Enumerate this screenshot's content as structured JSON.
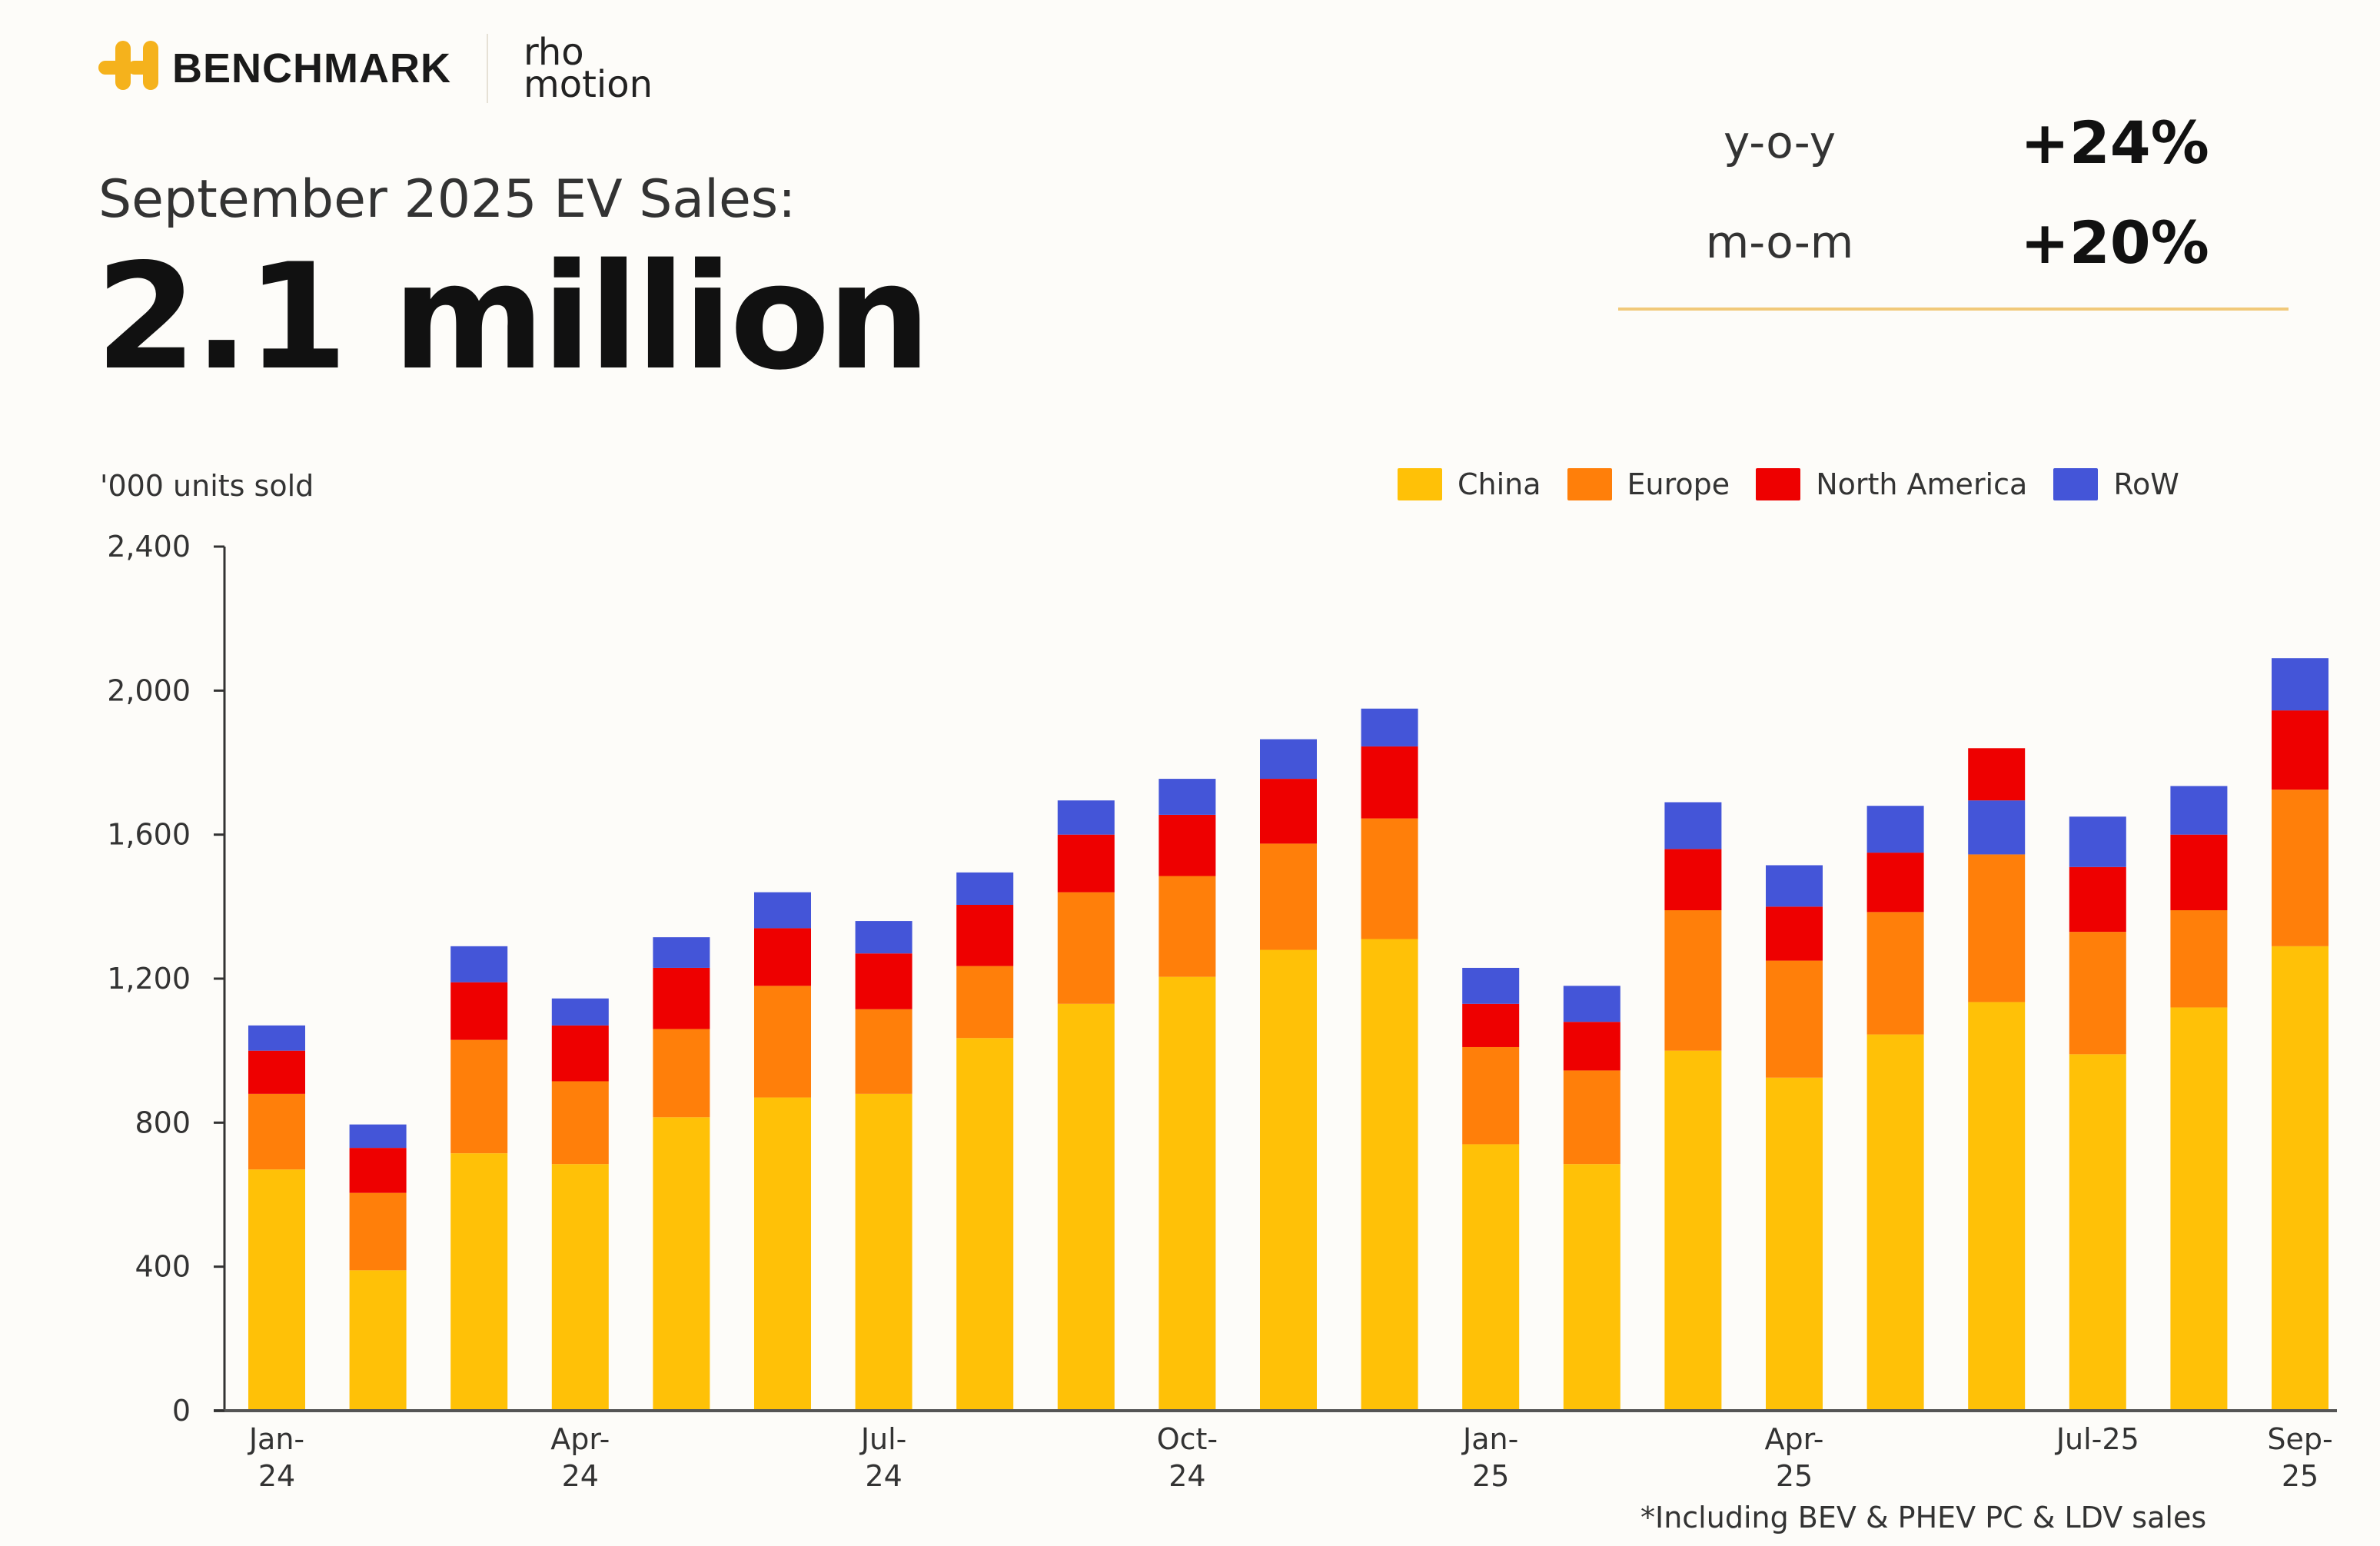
{
  "header": {
    "brand": "BENCHMARK",
    "partner_line1": "rho",
    "partner_line2": "motion",
    "subtitle": "September 2025 EV Sales:",
    "headline": "2.1 million"
  },
  "kpis": [
    {
      "label": "y-o-y",
      "value": "+24%"
    },
    {
      "label": "m-o-m",
      "value": "+20%"
    }
  ],
  "footnote": "*Including BEV & PHEV PC & LDV sales",
  "colors": {
    "China": "#ffc107",
    "Europe": "#ff7f0a",
    "North America": "#ee0000",
    "RoW": "#4455d8",
    "accent_line": "#f1c97a"
  },
  "chart_data": {
    "type": "bar",
    "stacked": true,
    "title": "September 2025 EV Sales",
    "ylabel": "'000 units sold",
    "xlabel": "",
    "ylim": [
      0,
      2400
    ],
    "yticks": [
      0,
      400,
      800,
      1200,
      1600,
      2000,
      2400
    ],
    "ytick_labels": [
      "0",
      "400",
      "800",
      "1,200",
      "1,600",
      "2,000",
      "2,400"
    ],
    "grid": false,
    "legend_position": "top-right",
    "categories": [
      "Jan-24",
      "Feb-24",
      "Mar-24",
      "Apr-24",
      "May-24",
      "Jun-24",
      "Jul-24",
      "Aug-24",
      "Sep-24",
      "Oct-24",
      "Nov-24",
      "Dec-24",
      "Jan-25",
      "Feb-25",
      "Mar-25",
      "Apr-25",
      "May-25",
      "Jun-25",
      "Jul-25",
      "Aug-25",
      "Sep-25"
    ],
    "xtick_labels": [
      {
        "index": 0,
        "lines": [
          "Jan-",
          "24"
        ]
      },
      {
        "index": 3,
        "lines": [
          "Apr-",
          "24"
        ]
      },
      {
        "index": 6,
        "lines": [
          "Jul-",
          "24"
        ]
      },
      {
        "index": 9,
        "lines": [
          "Oct-",
          "24"
        ]
      },
      {
        "index": 12,
        "lines": [
          "Jan-",
          "25"
        ]
      },
      {
        "index": 15,
        "lines": [
          "Apr-",
          "25"
        ]
      },
      {
        "index": 18,
        "lines": [
          "Jul-25"
        ]
      },
      {
        "index": 20,
        "lines": [
          "Sep-",
          "25"
        ]
      }
    ],
    "series": [
      {
        "name": "China",
        "values": [
          670,
          390,
          715,
          685,
          815,
          870,
          880,
          1035,
          1130,
          1205,
          1280,
          1310,
          740,
          685,
          1000,
          925,
          1045,
          1135,
          990,
          1120,
          1290
        ]
      },
      {
        "name": "Europe",
        "values": [
          210,
          215,
          315,
          230,
          245,
          310,
          235,
          200,
          310,
          280,
          295,
          335,
          270,
          260,
          390,
          325,
          340,
          410,
          340,
          270,
          435
        ]
      },
      {
        "name": "North America",
        "values": [
          120,
          125,
          160,
          155,
          170,
          160,
          155,
          170,
          160,
          170,
          180,
          200,
          120,
          135,
          170,
          150,
          165,
          145,
          180,
          210,
          220
        ]
      },
      {
        "name": "RoW",
        "values": [
          70,
          65,
          100,
          75,
          85,
          100,
          90,
          90,
          95,
          100,
          110,
          105,
          100,
          100,
          130,
          115,
          130,
          150,
          140,
          135,
          145
        ]
      }
    ],
    "stack_order_overrides": [
      {
        "category": "Jun-25",
        "order": [
          "China",
          "Europe",
          "RoW",
          "North America"
        ]
      }
    ],
    "totals": [
      1070,
      795,
      1290,
      1145,
      1315,
      1440,
      1360,
      1495,
      1695,
      1755,
      1865,
      1950,
      1230,
      1180,
      1690,
      1515,
      1680,
      1840,
      1650,
      1735,
      2090
    ]
  }
}
